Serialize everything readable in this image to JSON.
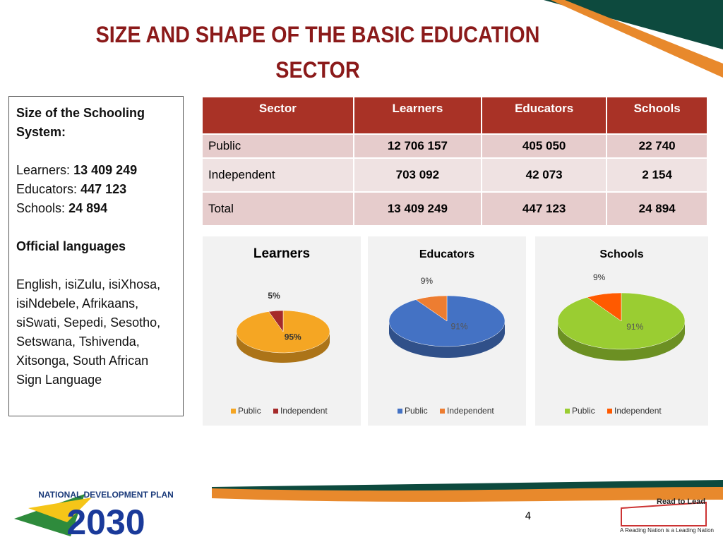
{
  "header": {
    "title": "SIZE AND SHAPE OF THE BASIC EDUCATION SECTOR"
  },
  "sidebar": {
    "heading": "Size of the Schooling System:",
    "stats": [
      {
        "label": "Learners:",
        "value": "13 409 249"
      },
      {
        "label": "Educators:",
        "value": "447 123"
      },
      {
        "label": "Schools:",
        "value": "24 894"
      }
    ],
    "languages_heading": "Official languages",
    "languages": "English, isiZulu, isiXhosa, isiNdebele, Afrikaans, siSwati, Sepedi, Sesotho, Setswana, Tshivenda, Xitsonga, South African Sign Language"
  },
  "table": {
    "header": [
      "Sector",
      "Learners",
      "Educators",
      "Schools"
    ],
    "rows": [
      [
        "Public",
        "12 706 157",
        "405 050",
        "22 740"
      ],
      [
        "Independent",
        "703 092",
        "42 073",
        "2 154"
      ],
      [
        "Total",
        "13 409 249",
        "447 123",
        "24 894"
      ]
    ]
  },
  "chart_data": [
    {
      "type": "pie",
      "title": "Learners",
      "categories": [
        "Public",
        "Independent"
      ],
      "values": [
        95,
        5
      ],
      "value_labels": [
        "95%",
        "5%"
      ],
      "colors": [
        "#f5a623",
        "#a52a2a"
      ]
    },
    {
      "type": "pie",
      "title": "Educators",
      "categories": [
        "Public",
        "Independent"
      ],
      "values": [
        91,
        9
      ],
      "value_labels": [
        "91%",
        "9%"
      ],
      "colors": [
        "#4472c4",
        "#ed7d31"
      ]
    },
    {
      "type": "pie",
      "title": "Schools",
      "categories": [
        "Public",
        "Independent"
      ],
      "values": [
        91,
        9
      ],
      "value_labels": [
        "91%",
        "9%"
      ],
      "colors": [
        "#9acd32",
        "#ff5a00"
      ]
    }
  ],
  "footer": {
    "page": "4",
    "logo_top": "NATIONAL DEVELOPMENT PLAN",
    "logo_year": "2030",
    "brand": "Read to Lead",
    "tagline": "A Reading Nation is a Leading Nation"
  }
}
